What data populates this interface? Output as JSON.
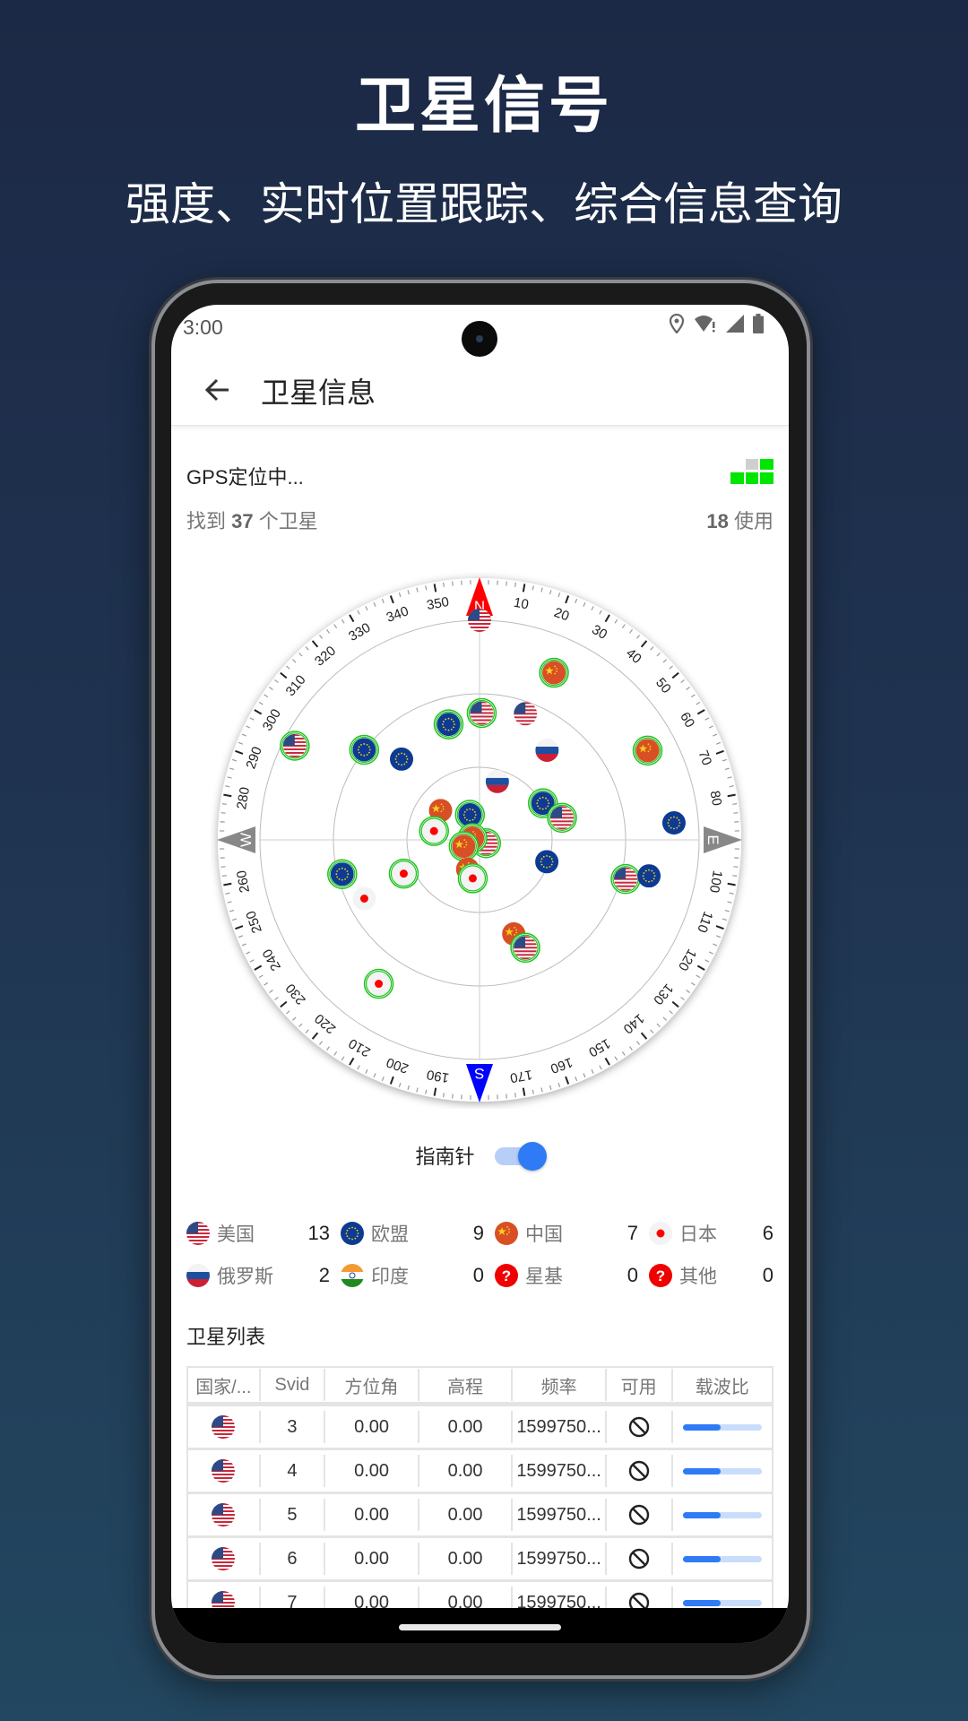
{
  "hero": {
    "title": "卫星信号",
    "subtitle": "强度、实时位置跟踪、综合信息查询"
  },
  "status_bar": {
    "time": "3:00",
    "icons": [
      "location-icon",
      "wifi-alert-icon",
      "cell-signal-icon",
      "battery-icon"
    ]
  },
  "app_bar": {
    "title": "卫星信息",
    "back_icon": "arrow-left-icon"
  },
  "fix": {
    "status": "GPS定位中...",
    "found_prefix": "找到",
    "found_count": "37",
    "found_suffix": "个卫星",
    "used_count": "18",
    "used_suffix": "使用",
    "signal_level": "4 of 5 blocks lit",
    "colors": {
      "on": "#00e600",
      "off": "#cfcfcf"
    }
  },
  "sky_plot": {
    "cardinals": {
      "N": "N",
      "E": "E",
      "S": "S",
      "W": "W"
    },
    "colors": {
      "north": "#ff0000",
      "south": "#0000ff",
      "east_west": "#888888",
      "used_ring": "#22c322"
    },
    "satellites": [
      {
        "c": "us",
        "az": 0,
        "el": 0,
        "used": false
      },
      {
        "c": "cn",
        "az": 24,
        "el": 15,
        "used": true
      },
      {
        "c": "us",
        "az": 1,
        "el": 38,
        "used": true
      },
      {
        "c": "us",
        "az": 20,
        "el": 35,
        "used": false
      },
      {
        "c": "eu",
        "az": 345,
        "el": 41,
        "used": true
      },
      {
        "c": "us",
        "az": 297,
        "el": 5,
        "used": true
      },
      {
        "c": "eu",
        "az": 308,
        "el": 30,
        "used": true
      },
      {
        "c": "eu",
        "az": 316,
        "el": 44,
        "used": false
      },
      {
        "c": "ru",
        "az": 37,
        "el": 44,
        "used": false
      },
      {
        "c": "cn",
        "az": 62,
        "el": 12,
        "used": true
      },
      {
        "c": "ru",
        "az": 17,
        "el": 65,
        "used": false
      },
      {
        "c": "eu",
        "az": 60,
        "el": 60,
        "used": true
      },
      {
        "c": "us",
        "az": 75,
        "el": 55,
        "used": true
      },
      {
        "c": "eu",
        "az": 85,
        "el": 10,
        "used": false
      },
      {
        "c": "cn",
        "az": 307,
        "el": 70,
        "used": false
      },
      {
        "c": "eu",
        "az": 339,
        "el": 79,
        "used": true
      },
      {
        "c": "jp",
        "az": 281,
        "el": 71,
        "used": true
      },
      {
        "c": "us",
        "az": 117,
        "el": 87,
        "used": true
      },
      {
        "c": "cn",
        "az": 284,
        "el": 87,
        "used": true
      },
      {
        "c": "cn",
        "az": 248,
        "el": 83,
        "used": true
      },
      {
        "c": "cn",
        "az": 202,
        "el": 77,
        "used": false
      },
      {
        "c": "jp",
        "az": 190,
        "el": 74,
        "used": true
      },
      {
        "c": "eu",
        "az": 108,
        "el": 61,
        "used": false
      },
      {
        "c": "eu",
        "az": 256,
        "el": 32,
        "used": true
      },
      {
        "c": "jp",
        "az": 246,
        "el": 56,
        "used": true
      },
      {
        "c": "jp",
        "az": 243,
        "el": 37,
        "used": false
      },
      {
        "c": "us",
        "az": 105,
        "el": 28,
        "used": true
      },
      {
        "c": "eu",
        "az": 102,
        "el": 19,
        "used": false
      },
      {
        "c": "cn",
        "az": 160,
        "el": 49,
        "used": false
      },
      {
        "c": "us",
        "az": 157,
        "el": 42,
        "used": true
      },
      {
        "c": "jp",
        "az": 215,
        "el": 18,
        "used": true
      }
    ]
  },
  "compass_toggle": {
    "label": "指南针",
    "on": true
  },
  "legend": [
    [
      {
        "flag": "us",
        "label": "美国",
        "count": "13"
      },
      {
        "flag": "eu",
        "label": "欧盟",
        "count": "9"
      },
      {
        "flag": "cn",
        "label": "中国",
        "count": "7"
      },
      {
        "flag": "jp",
        "label": "日本",
        "count": "6"
      }
    ],
    [
      {
        "flag": "ru",
        "label": "俄罗斯",
        "count": "2"
      },
      {
        "flag": "in",
        "label": "印度",
        "count": "0"
      },
      {
        "flag": "unknown",
        "label": "星基",
        "count": "0"
      },
      {
        "flag": "unknown",
        "label": "其他",
        "count": "0"
      }
    ]
  ],
  "satellite_list": {
    "title": "卫星列表",
    "columns": [
      "国家/...",
      "Svid",
      "方位角",
      "高程",
      "频率",
      "可用",
      "载波比"
    ],
    "rows": [
      {
        "flag": "us",
        "svid": "3",
        "azimuth": "0.00",
        "elevation": "0.00",
        "frequency": "1599750...",
        "available_icon": "ban-icon",
        "cn0_fraction": 0.48
      },
      {
        "flag": "us",
        "svid": "4",
        "azimuth": "0.00",
        "elevation": "0.00",
        "frequency": "1599750...",
        "available_icon": "ban-icon",
        "cn0_fraction": 0.48
      },
      {
        "flag": "us",
        "svid": "5",
        "azimuth": "0.00",
        "elevation": "0.00",
        "frequency": "1599750...",
        "available_icon": "ban-icon",
        "cn0_fraction": 0.48
      },
      {
        "flag": "us",
        "svid": "6",
        "azimuth": "0.00",
        "elevation": "0.00",
        "frequency": "1599750...",
        "available_icon": "ban-icon",
        "cn0_fraction": 0.48
      },
      {
        "flag": "us",
        "svid": "7",
        "azimuth": "0.00",
        "elevation": "0.00",
        "frequency": "1599750...",
        "available_icon": "ban-icon",
        "cn0_fraction": 0.48
      }
    ],
    "accent": "#2f7bf5"
  }
}
